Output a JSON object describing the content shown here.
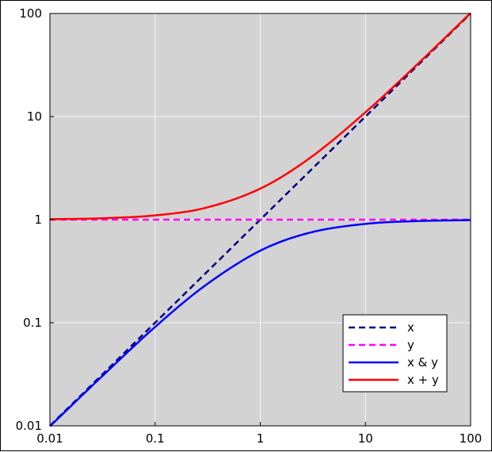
{
  "chart_data": {
    "type": "line",
    "title": "",
    "xlabel": "",
    "ylabel": "",
    "xscale": "log",
    "yscale": "log",
    "xlim": [
      0.01,
      100
    ],
    "ylim": [
      0.01,
      100
    ],
    "grid": true,
    "background": "#d3d3d3",
    "x_ticks": [
      {
        "value": 0.01,
        "label": "0.01"
      },
      {
        "value": 0.1,
        "label": "0.1"
      },
      {
        "value": 1,
        "label": "1"
      },
      {
        "value": 10,
        "label": "10"
      },
      {
        "value": 100,
        "label": "100"
      }
    ],
    "y_ticks": [
      {
        "value": 0.01,
        "label": "0.01"
      },
      {
        "value": 0.1,
        "label": "0.1"
      },
      {
        "value": 1,
        "label": "1"
      },
      {
        "value": 10,
        "label": "10"
      },
      {
        "value": 100,
        "label": "100"
      }
    ],
    "legend": {
      "position": "lower-right"
    },
    "series": [
      {
        "name": "x",
        "color": "#000080",
        "dash": "dashed",
        "points": [
          [
            0.01,
            0.01
          ],
          [
            0.1,
            0.1
          ],
          [
            1,
            1
          ],
          [
            10,
            10
          ],
          [
            100,
            100
          ]
        ]
      },
      {
        "name": "y",
        "color": "#ff00ff",
        "dash": "dashed",
        "points": [
          [
            0.01,
            1
          ],
          [
            0.1,
            1
          ],
          [
            1,
            1
          ],
          [
            10,
            1
          ],
          [
            100,
            1
          ]
        ]
      },
      {
        "name": "x & y",
        "color": "#0000ff",
        "dash": "solid",
        "points": [
          [
            0.01,
            0.0099
          ],
          [
            0.03,
            0.029
          ],
          [
            0.1,
            0.091
          ],
          [
            0.3,
            0.23
          ],
          [
            1,
            0.5
          ],
          [
            3,
            0.75
          ],
          [
            10,
            0.91
          ],
          [
            30,
            0.968
          ],
          [
            100,
            0.99
          ]
        ]
      },
      {
        "name": "x + y",
        "color": "#ff0000",
        "dash": "solid",
        "points": [
          [
            0.01,
            1.01
          ],
          [
            0.03,
            1.03
          ],
          [
            0.1,
            1.1
          ],
          [
            0.3,
            1.3
          ],
          [
            1,
            2
          ],
          [
            3,
            4
          ],
          [
            10,
            11
          ],
          [
            30,
            31
          ],
          [
            100,
            101
          ]
        ]
      }
    ]
  }
}
